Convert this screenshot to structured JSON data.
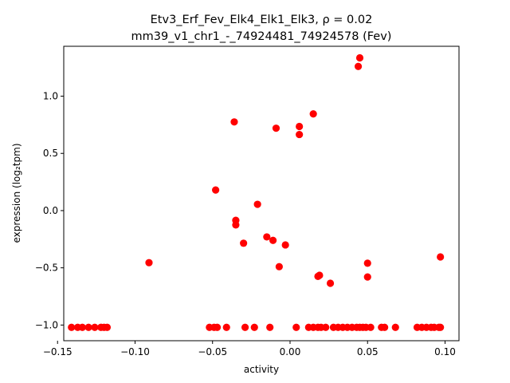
{
  "chart_data": {
    "type": "scatter",
    "title_line1": "Etv3_Erf_Fev_Elk4_Elk1_Elk3, ρ = 0.02",
    "title_line2": "mm39_v1_chr1_-_74924481_74924578 (Fev)",
    "xlabel": "activity",
    "ylabel": "expression (log₂tpm)",
    "xlim": [
      -0.146,
      0.109
    ],
    "ylim": [
      -1.137,
      1.436
    ],
    "xticks": [
      -0.15,
      -0.1,
      -0.05,
      0.0,
      0.05,
      0.1
    ],
    "xtick_labels": [
      "−0.15",
      "−0.10",
      "−0.05",
      "0.00",
      "0.05",
      "0.10"
    ],
    "yticks": [
      -1.0,
      -0.5,
      0.0,
      0.5,
      1.0
    ],
    "ytick_labels": [
      "−1.0",
      "−0.5",
      "0.0",
      "0.5",
      "1.0"
    ],
    "marker_color": "#ff0000",
    "grid": false,
    "points": [
      {
        "x": -0.141,
        "y": -1.02
      },
      {
        "x": -0.137,
        "y": -1.02
      },
      {
        "x": -0.134,
        "y": -1.02
      },
      {
        "x": -0.13,
        "y": -1.02
      },
      {
        "x": -0.126,
        "y": -1.02
      },
      {
        "x": -0.122,
        "y": -1.02
      },
      {
        "x": -0.12,
        "y": -1.02
      },
      {
        "x": -0.118,
        "y": -1.02
      },
      {
        "x": -0.091,
        "y": -0.455
      },
      {
        "x": -0.052,
        "y": -1.02
      },
      {
        "x": -0.049,
        "y": -1.02
      },
      {
        "x": -0.047,
        "y": -1.02
      },
      {
        "x": -0.041,
        "y": -1.02
      },
      {
        "x": -0.029,
        "y": -1.02
      },
      {
        "x": -0.023,
        "y": -1.02
      },
      {
        "x": -0.013,
        "y": -1.02
      },
      {
        "x": -0.048,
        "y": 0.18
      },
      {
        "x": -0.036,
        "y": 0.775
      },
      {
        "x": -0.035,
        "y": -0.085
      },
      {
        "x": -0.035,
        "y": -0.125
      },
      {
        "x": -0.03,
        "y": -0.285
      },
      {
        "x": -0.021,
        "y": 0.055
      },
      {
        "x": -0.015,
        "y": -0.23
      },
      {
        "x": -0.011,
        "y": -0.26
      },
      {
        "x": -0.009,
        "y": 0.72
      },
      {
        "x": -0.007,
        "y": -0.49
      },
      {
        "x": -0.003,
        "y": -0.3
      },
      {
        "x": 0.004,
        "y": -1.02
      },
      {
        "x": 0.006,
        "y": 0.735
      },
      {
        "x": 0.006,
        "y": 0.665
      },
      {
        "x": 0.012,
        "y": -1.02
      },
      {
        "x": 0.015,
        "y": -1.02
      },
      {
        "x": 0.015,
        "y": 0.845
      },
      {
        "x": 0.018,
        "y": -1.02
      },
      {
        "x": 0.02,
        "y": -1.02
      },
      {
        "x": 0.023,
        "y": -1.02
      },
      {
        "x": 0.018,
        "y": -0.575
      },
      {
        "x": 0.019,
        "y": -0.565
      },
      {
        "x": 0.026,
        "y": -0.635
      },
      {
        "x": 0.028,
        "y": -1.02
      },
      {
        "x": 0.031,
        "y": -1.02
      },
      {
        "x": 0.034,
        "y": -1.02
      },
      {
        "x": 0.037,
        "y": -1.02
      },
      {
        "x": 0.04,
        "y": -1.02
      },
      {
        "x": 0.043,
        "y": -1.02
      },
      {
        "x": 0.045,
        "y": -1.02
      },
      {
        "x": 0.047,
        "y": -1.02
      },
      {
        "x": 0.049,
        "y": -1.02
      },
      {
        "x": 0.052,
        "y": -1.02
      },
      {
        "x": 0.044,
        "y": 1.26
      },
      {
        "x": 0.045,
        "y": 1.335
      },
      {
        "x": 0.05,
        "y": -0.46
      },
      {
        "x": 0.05,
        "y": -0.58
      },
      {
        "x": 0.059,
        "y": -1.02
      },
      {
        "x": 0.061,
        "y": -1.02
      },
      {
        "x": 0.068,
        "y": -1.02
      },
      {
        "x": 0.082,
        "y": -1.02
      },
      {
        "x": 0.085,
        "y": -1.02
      },
      {
        "x": 0.088,
        "y": -1.02
      },
      {
        "x": 0.091,
        "y": -1.02
      },
      {
        "x": 0.093,
        "y": -1.02
      },
      {
        "x": 0.096,
        "y": -1.02
      },
      {
        "x": 0.097,
        "y": -1.02
      },
      {
        "x": 0.097,
        "y": -0.405
      }
    ]
  }
}
